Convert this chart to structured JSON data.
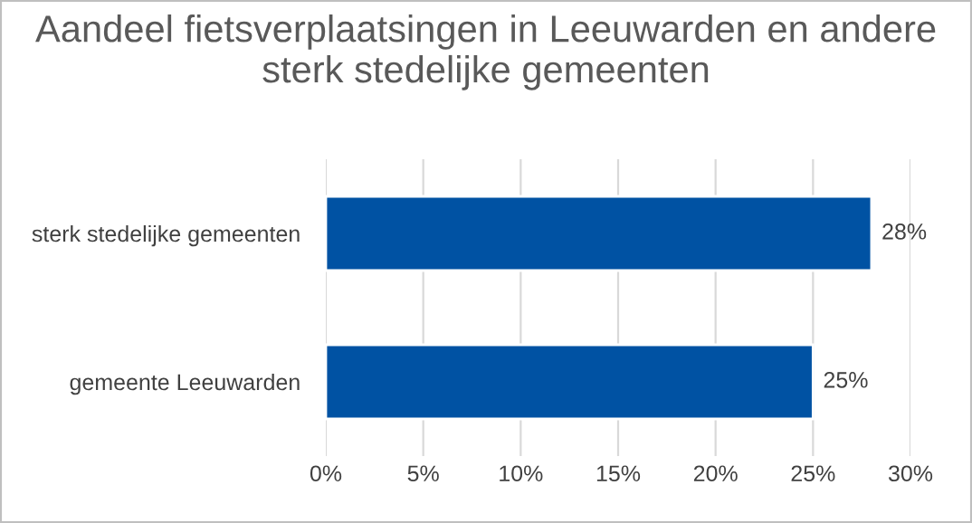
{
  "chart_data": {
    "type": "bar",
    "orientation": "horizontal",
    "title": "Aandeel fietsverplaatsingen in Leeuwarden en andere sterk stedelijke gemeenten",
    "categories": [
      "sterk stedelijke gemeenten",
      "gemeente Leeuwarden"
    ],
    "values": [
      28,
      25
    ],
    "color": "#0052a3",
    "value_labels": [
      "28%",
      "25%"
    ],
    "xlim": [
      0,
      30
    ],
    "xticks": [
      {
        "value": 0,
        "label": "0%"
      },
      {
        "value": 5,
        "label": "5%"
      },
      {
        "value": 10,
        "label": "10%"
      },
      {
        "value": 15,
        "label": "15%"
      },
      {
        "value": 20,
        "label": "20%"
      },
      {
        "value": 25,
        "label": "25%"
      },
      {
        "value": 30,
        "label": "30%"
      }
    ],
    "grid": "x",
    "legend": false
  }
}
